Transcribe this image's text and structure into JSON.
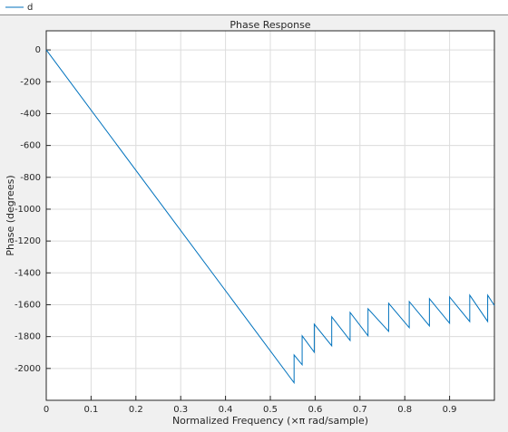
{
  "chart_data": {
    "type": "line",
    "title": "Phase Response",
    "x_label": "Normalized Frequency (×π rad/sample)",
    "y_label": "Phase (degrees)",
    "x": [
      0,
      0.553,
      0.553,
      0.571,
      0.571,
      0.598,
      0.598,
      0.637,
      0.637,
      0.678,
      0.678,
      0.718,
      0.718,
      0.764,
      0.764,
      0.81,
      0.81,
      0.855,
      0.855,
      0.9,
      0.9,
      0.945,
      0.945,
      0.985,
      0.985,
      1.0
    ],
    "series": [
      {
        "name": "d",
        "color": "#0072bd",
        "values": [
          0,
          -2090,
          -1915,
          -1977,
          -1795,
          -1898,
          -1722,
          -1858,
          -1676,
          -1824,
          -1648,
          -1795,
          -1625,
          -1767,
          -1591,
          -1744,
          -1580,
          -1733,
          -1562,
          -1716,
          -1551,
          -1706,
          -1540,
          -1705,
          -1540,
          -1605
        ]
      }
    ],
    "xlim": [
      0,
      1.0
    ],
    "ylim": [
      -2200,
      120
    ],
    "xticks": [
      0,
      0.1,
      0.2,
      0.3,
      0.4,
      0.5,
      0.6,
      0.7,
      0.8,
      0.9
    ],
    "yticks": [
      -2000,
      -1800,
      -1600,
      -1400,
      -1200,
      -1000,
      -800,
      -600,
      -400,
      -200,
      0
    ],
    "grid": true,
    "legend": "top-left"
  }
}
